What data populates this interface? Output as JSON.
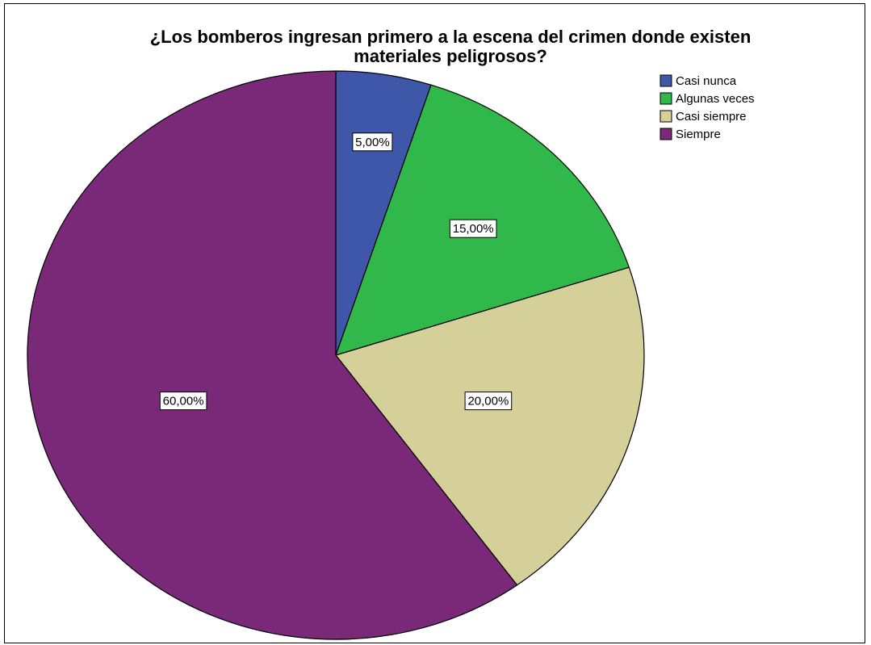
{
  "chart_data": {
    "type": "pie",
    "title_lines": [
      "¿Los bomberos ingresan primero a la escena del crimen donde existen",
      "materiales peligrosos?"
    ],
    "legend_position": "top-right",
    "slices": [
      {
        "name": "Casi nunca",
        "value": 5,
        "label": "5,00%",
        "color": "#3e57a8"
      },
      {
        "name": "Algunas veces",
        "value": 15,
        "label": "15,00%",
        "color": "#30b84a"
      },
      {
        "name": "Casi siempre",
        "value": 20,
        "label": "20,00%",
        "color": "#d5cf9a"
      },
      {
        "name": "Siempre",
        "value": 60,
        "label": "60,00%",
        "color": "#7a2878"
      }
    ]
  }
}
